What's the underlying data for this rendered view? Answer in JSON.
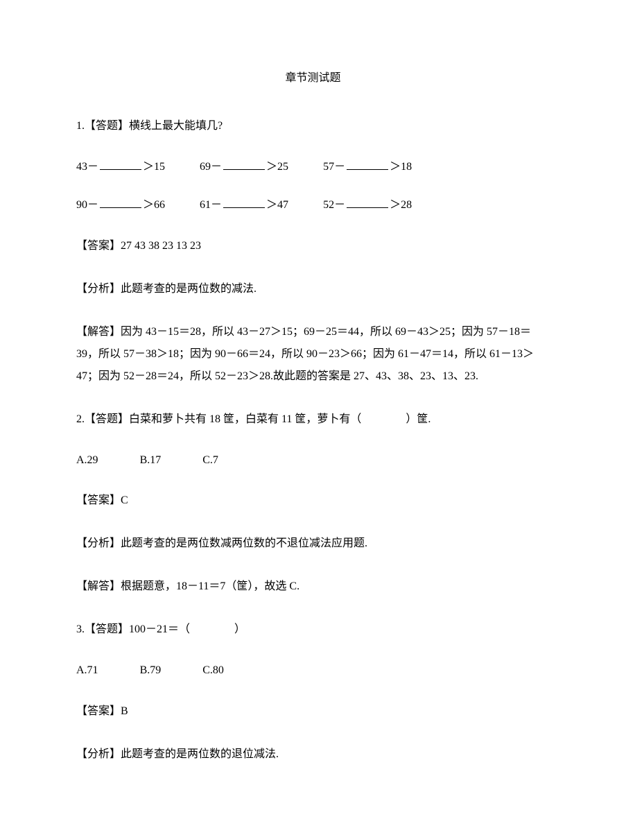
{
  "title": "章节测试题",
  "q1": {
    "prompt": "1.【答题】横线上最大能填几?",
    "row1": {
      "a": {
        "lhs": "43－",
        "rhs": "＞15"
      },
      "b": {
        "lhs": "69－",
        "rhs": "＞25"
      },
      "c": {
        "lhs": "57－",
        "rhs": "＞18"
      }
    },
    "row2": {
      "a": {
        "lhs": "90－",
        "rhs": "＞66"
      },
      "b": {
        "lhs": "61－",
        "rhs": "＞47"
      },
      "c": {
        "lhs": "52－",
        "rhs": "＞28"
      }
    },
    "answer": "【答案】27 43 38 23 13 23",
    "analysis": "【分析】此题考查的是两位数的减法.",
    "solution": "【解答】因为 43－15＝28，所以 43－27＞15；69－25＝44，所以 69－43＞25；因为 57－18＝39，所以 57－38＞18；因为 90－66＝24，所以 90－23＞66；因为 61－47＝14，所以 61－13＞47；因为 52－28＝24，所以 52－23＞28.故此题的答案是 27、43、38、23、13、23."
  },
  "q2": {
    "prompt": "2.【答题】白菜和萝卜共有 18 筐，白菜有 11 筐，萝卜有（　　　　）筐.",
    "options": {
      "a": "A.29",
      "b": "B.17",
      "c": "C.7"
    },
    "answer": "【答案】C",
    "analysis": "【分析】此题考查的是两位数减两位数的不退位减法应用题.",
    "solution": "【解答】根据题意，18－11＝7（筐），故选 C."
  },
  "q3": {
    "prompt": "3.【答题】100－21＝（　　　　）",
    "options": {
      "a": "A.71",
      "b": "B.79",
      "c": "C.80"
    },
    "answer": "【答案】B",
    "analysis": "【分析】此题考查的是两位数的退位减法."
  }
}
